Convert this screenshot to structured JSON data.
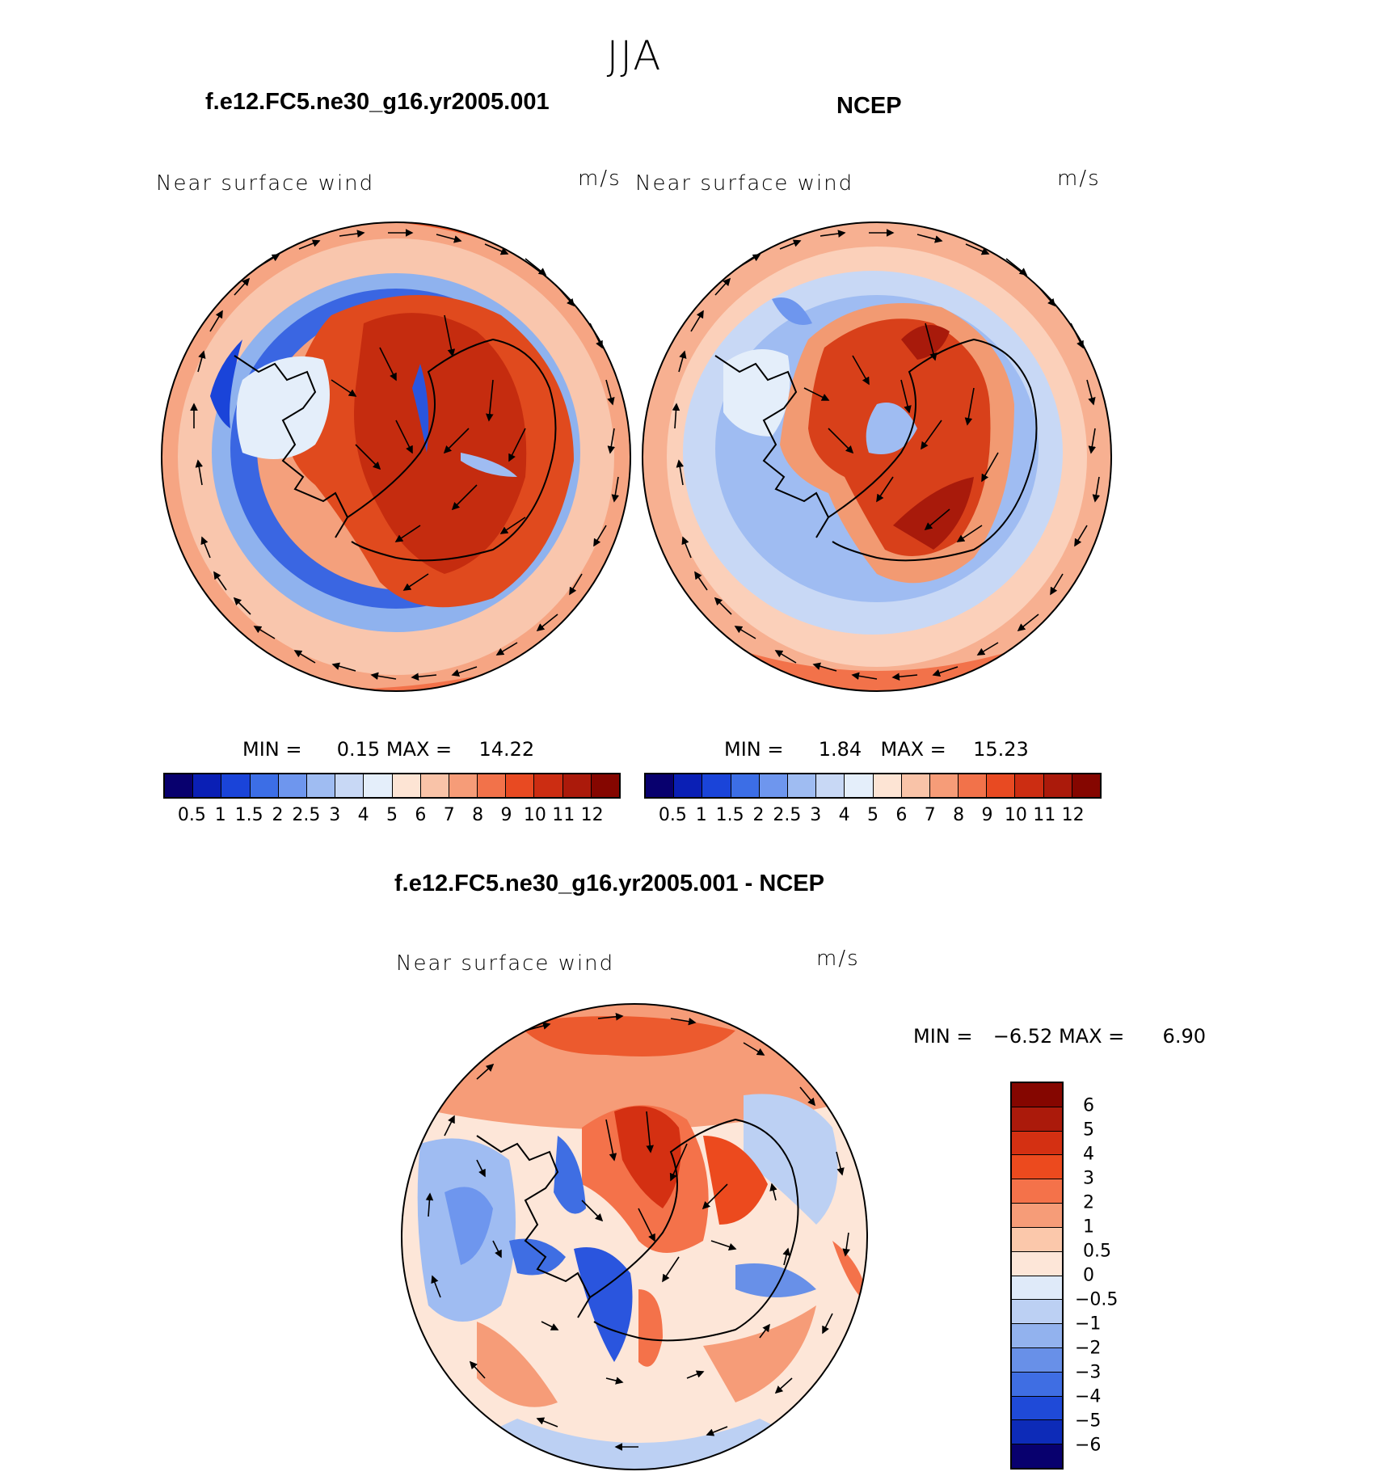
{
  "page_title": "JJA",
  "panels": [
    {
      "title": "f.e12.FC5.ne30_g16.yr2005.001",
      "variable": "Near surface wind",
      "units": "m/s",
      "min_label": "MIN =",
      "min_value": "0.15",
      "max_label": "MAX =",
      "max_value": "14.22"
    },
    {
      "title": "NCEP",
      "variable": "Near surface wind",
      "units": "m/s",
      "min_label": "MIN =",
      "min_value": "1.84",
      "max_label": "MAX =",
      "max_value": "15.23"
    },
    {
      "title": "f.e12.FC5.ne30_g16.yr2005.001 - NCEP",
      "variable": "Near surface wind",
      "units": "m/s",
      "min_label": "MIN =",
      "min_value": "−6.52",
      "max_label": "MAX =",
      "max_value": "6.90"
    }
  ],
  "colorbar_abs": {
    "colors": [
      "#08006e",
      "#0a1fb5",
      "#1a44d9",
      "#3c6ee6",
      "#6e96ee",
      "#9fbcf2",
      "#c8d8f5",
      "#e4eefa",
      "#fde4d4",
      "#f9c3a8",
      "#f69c78",
      "#f2724a",
      "#e84a22",
      "#cc2d12",
      "#ab1a0b",
      "#850600"
    ],
    "tick_labels": [
      "0.5",
      "1",
      "1.5",
      "2",
      "2.5",
      "3",
      "4",
      "5",
      "6",
      "7",
      "8",
      "9",
      "10",
      "11",
      "12"
    ]
  },
  "colorbar_diff": {
    "colors": [
      "#850600",
      "#ab1a0b",
      "#d43012",
      "#ec4a1e",
      "#f4724a",
      "#f69c78",
      "#fbc8ab",
      "#fde6d8",
      "#dfeaf9",
      "#bcd0f3",
      "#92b2ee",
      "#6890e8",
      "#3f6ee3",
      "#1f4ad8",
      "#0d2bb8",
      "#08006e"
    ],
    "tick_labels": [
      "6",
      "5",
      "4",
      "3",
      "2",
      "1",
      "0.5",
      "0",
      "−0.5",
      "−1",
      "−2",
      "−3",
      "−4",
      "−5",
      "−6"
    ]
  }
}
